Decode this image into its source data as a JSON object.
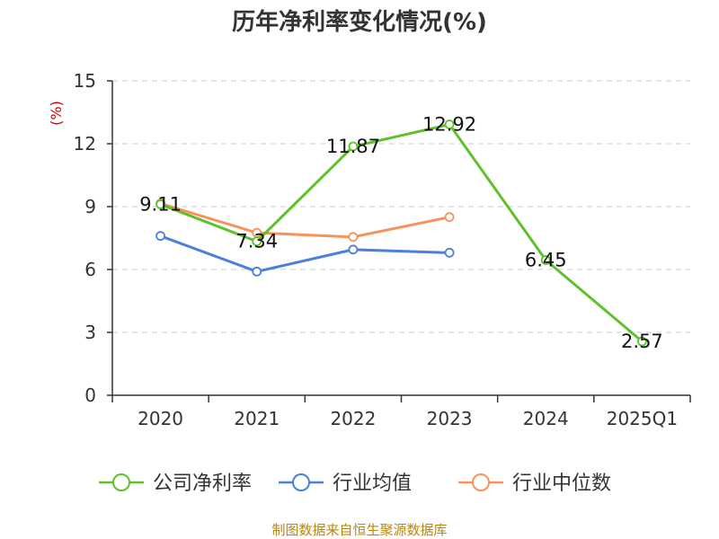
{
  "chart_data": {
    "type": "line",
    "title": "历年净利率变化情况(%)",
    "ylabel": "(%)",
    "categories": [
      "2020",
      "2021",
      "2022",
      "2023",
      "2024",
      "2025Q1"
    ],
    "ylim": [
      0,
      15
    ],
    "yticks": [
      0,
      3,
      6,
      9,
      12,
      15
    ],
    "grid": true,
    "legend_position": "bottom",
    "series": [
      {
        "name": "公司净利率",
        "color": "#5ec12b",
        "values": [
          9.11,
          7.34,
          11.87,
          12.92,
          6.45,
          2.57
        ],
        "labels": [
          "9.11",
          "7.34",
          "11.87",
          "12.92",
          "6.45",
          "2.57"
        ]
      },
      {
        "name": "行业均值",
        "color": "#4a7fdb",
        "values": [
          7.6,
          5.9,
          6.95,
          6.8,
          null,
          null
        ]
      },
      {
        "name": "行业中位数",
        "color": "#f5935a",
        "values": [
          9.15,
          7.75,
          7.55,
          8.5,
          null,
          null
        ]
      }
    ]
  },
  "source_text": "制图数据来自恒生聚源数据库"
}
